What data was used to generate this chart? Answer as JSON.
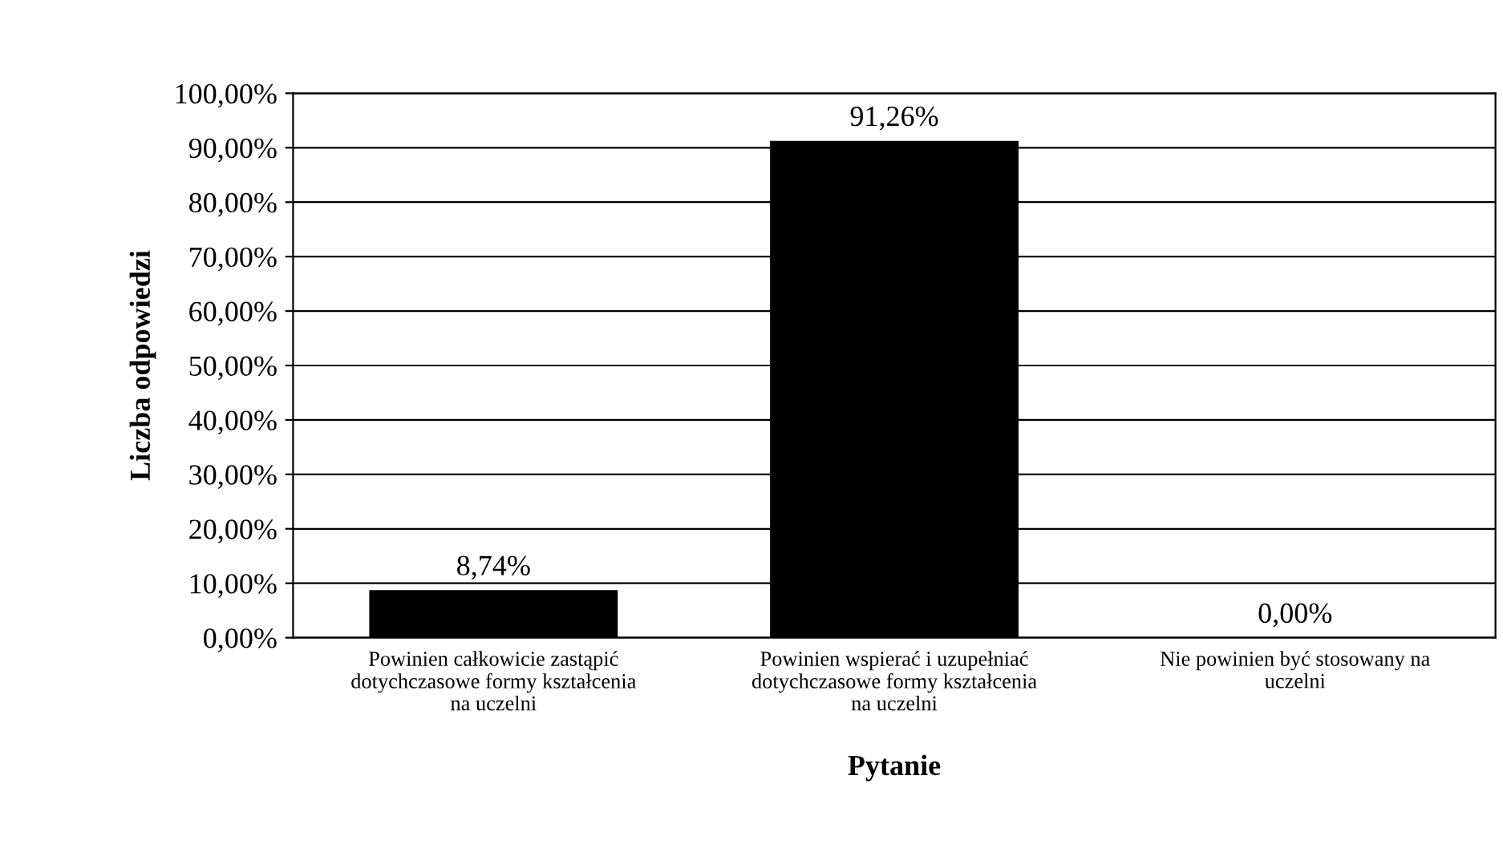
{
  "chart_data": {
    "type": "bar",
    "xlabel": "Pytanie",
    "ylabel": "Liczba odpowiedzi",
    "categories": [
      "Powinien całkowicie zastąpić\ndotychczasowe formy kształcenia\nna uczelni",
      "Powinien wspierać i uzupełniać\ndotychczasowe formy kształcenia\nna uczelni",
      "Nie powinien być stosowany na\nuczelni"
    ],
    "values": [
      8.74,
      91.26,
      0
    ],
    "color": "#000000",
    "value_labels": [
      "8,74%",
      "91,26%",
      "0,00%"
    ],
    "ylim": [
      0,
      100
    ],
    "yticks": [
      {
        "value": 0,
        "label": "0,00%"
      },
      {
        "value": 10,
        "label": "10,00%"
      },
      {
        "value": 20,
        "label": "20,00%"
      },
      {
        "value": 30,
        "label": "30,00%"
      },
      {
        "value": 40,
        "label": "40,00%"
      },
      {
        "value": 50,
        "label": "50,00%"
      },
      {
        "value": 60,
        "label": "60,00%"
      },
      {
        "value": 70,
        "label": "70,00%"
      },
      {
        "value": 80,
        "label": "80,00%"
      },
      {
        "value": 90,
        "label": "90,00%"
      },
      {
        "value": 100,
        "label": "100,00%"
      }
    ],
    "grid": "y",
    "legend": false
  }
}
